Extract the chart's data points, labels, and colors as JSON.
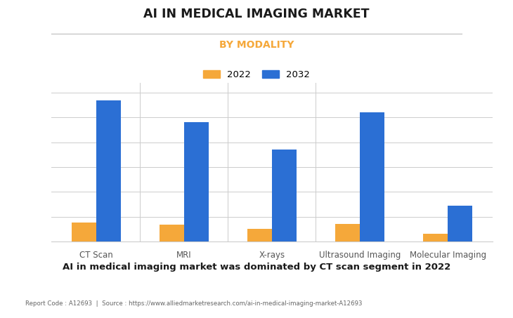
{
  "title": "AI IN MEDICAL IMAGING MARKET",
  "subtitle": "BY MODALITY",
  "categories": [
    "CT Scan",
    "MRI",
    "X-rays",
    "Ultrasound Imaging",
    "Molecular Imaging"
  ],
  "values_2022": [
    0.38,
    0.34,
    0.26,
    0.36,
    0.16
  ],
  "values_2032": [
    2.85,
    2.4,
    1.85,
    2.6,
    0.72
  ],
  "color_2022": "#F5A83A",
  "color_2032": "#2B6FD4",
  "legend_labels": [
    "2022",
    "2032"
  ],
  "subtitle_color": "#F5A83A",
  "title_color": "#1a1a1a",
  "bar_width": 0.28,
  "ylim": [
    0,
    3.2
  ],
  "grid_color": "#cccccc",
  "background_color": "#ffffff",
  "footer_text": "AI in medical imaging market was dominated by CT scan segment in 2022",
  "report_text": "Report Code : A12693  |  Source : https://www.alliedmarketresearch.com/ai-in-medical-imaging-market-A12693"
}
